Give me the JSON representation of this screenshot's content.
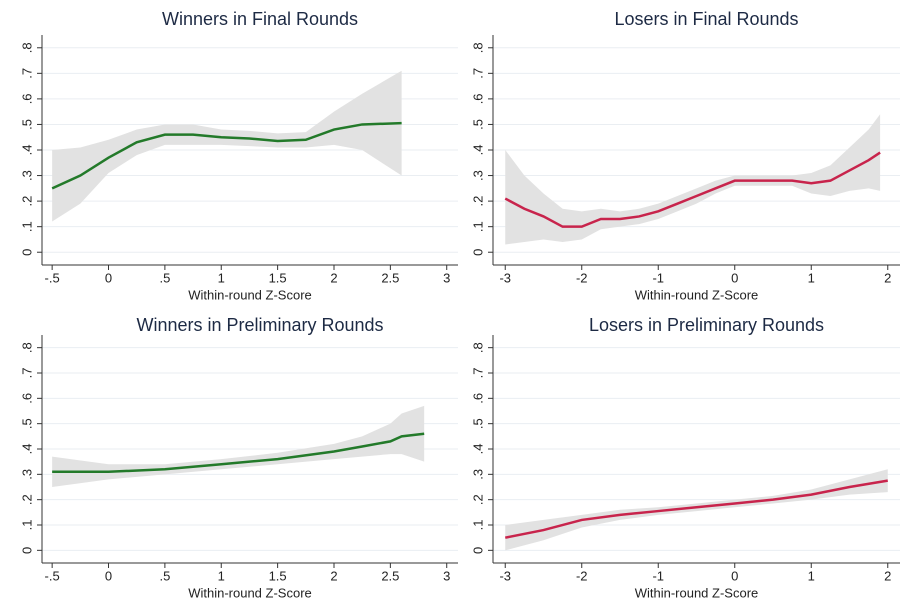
{
  "chart_data": [
    {
      "type": "line",
      "title": "Winners in Final Rounds",
      "xlabel": "Within-round Z-Score",
      "xlim": [
        -0.59,
        3.1
      ],
      "ylim": [
        -0.05,
        0.85
      ],
      "xticks": [
        {
          "value": -0.5,
          "label": "-.5"
        },
        0,
        {
          "value": 0.5,
          "label": ".5"
        },
        1,
        1.5,
        2,
        2.5,
        3
      ],
      "yticks": [
        0,
        {
          "value": 0.1,
          "label": ".1"
        },
        {
          "value": 0.2,
          "label": ".2"
        },
        {
          "value": 0.3,
          "label": ".3"
        },
        {
          "value": 0.4,
          "label": ".4"
        },
        {
          "value": 0.5,
          "label": ".5"
        },
        {
          "value": 0.6,
          "label": ".6"
        },
        {
          "value": 0.7,
          "label": ".7"
        },
        {
          "value": 0.8,
          "label": ".8"
        }
      ],
      "grid": true,
      "band_color": "#e2e2e2",
      "series": [
        {
          "color": "#237a2a",
          "x": [
            -0.5,
            -0.25,
            0,
            0.25,
            0.5,
            0.75,
            1,
            1.25,
            1.5,
            1.75,
            2,
            2.25,
            2.6
          ],
          "values": [
            0.25,
            0.3,
            0.37,
            0.43,
            0.46,
            0.46,
            0.45,
            0.445,
            0.435,
            0.44,
            0.48,
            0.5,
            0.505
          ],
          "lower": [
            0.12,
            0.19,
            0.31,
            0.38,
            0.42,
            0.42,
            0.42,
            0.415,
            0.41,
            0.41,
            0.42,
            0.4,
            0.3
          ],
          "upper": [
            0.4,
            0.41,
            0.44,
            0.48,
            0.5,
            0.5,
            0.48,
            0.475,
            0.465,
            0.47,
            0.55,
            0.62,
            0.71
          ]
        }
      ]
    },
    {
      "type": "line",
      "title": "Losers in Final Rounds",
      "xlabel": "Within-round Z-Score",
      "xlim": [
        -3.16,
        2.16
      ],
      "ylim": [
        -0.05,
        0.85
      ],
      "xticks": [
        -3,
        -2,
        -1,
        0,
        1,
        2
      ],
      "yticks": [
        0,
        {
          "value": 0.1,
          "label": ".1"
        },
        {
          "value": 0.2,
          "label": ".2"
        },
        {
          "value": 0.3,
          "label": ".3"
        },
        {
          "value": 0.4,
          "label": ".4"
        },
        {
          "value": 0.5,
          "label": ".5"
        },
        {
          "value": 0.6,
          "label": ".6"
        },
        {
          "value": 0.7,
          "label": ".7"
        },
        {
          "value": 0.8,
          "label": ".8"
        }
      ],
      "grid": true,
      "band_color": "#e2e2e2",
      "series": [
        {
          "color": "#c8244c",
          "x": [
            -3,
            -2.75,
            -2.5,
            -2.25,
            -2,
            -1.75,
            -1.5,
            -1.25,
            -1,
            -0.75,
            -0.5,
            -0.25,
            0,
            0.25,
            0.5,
            0.75,
            1,
            1.25,
            1.5,
            1.75,
            1.9
          ],
          "values": [
            0.21,
            0.17,
            0.14,
            0.1,
            0.1,
            0.13,
            0.13,
            0.14,
            0.16,
            0.19,
            0.22,
            0.25,
            0.28,
            0.28,
            0.28,
            0.28,
            0.27,
            0.28,
            0.32,
            0.36,
            0.39
          ],
          "lower": [
            0.03,
            0.04,
            0.05,
            0.04,
            0.05,
            0.09,
            0.1,
            0.11,
            0.13,
            0.16,
            0.19,
            0.23,
            0.26,
            0.26,
            0.26,
            0.26,
            0.23,
            0.22,
            0.24,
            0.25,
            0.24
          ],
          "upper": [
            0.4,
            0.3,
            0.23,
            0.17,
            0.16,
            0.17,
            0.16,
            0.17,
            0.19,
            0.22,
            0.25,
            0.28,
            0.3,
            0.3,
            0.3,
            0.3,
            0.31,
            0.34,
            0.41,
            0.48,
            0.54
          ]
        }
      ]
    },
    {
      "type": "line",
      "title": "Winners in Preliminary Rounds",
      "xlabel": "Within-round Z-Score",
      "xlim": [
        -0.59,
        3.1
      ],
      "ylim": [
        -0.05,
        0.85
      ],
      "xticks": [
        {
          "value": -0.5,
          "label": "-.5"
        },
        0,
        {
          "value": 0.5,
          "label": ".5"
        },
        1,
        1.5,
        2,
        2.5,
        3
      ],
      "yticks": [
        0,
        {
          "value": 0.1,
          "label": ".1"
        },
        {
          "value": 0.2,
          "label": ".2"
        },
        {
          "value": 0.3,
          "label": ".3"
        },
        {
          "value": 0.4,
          "label": ".4"
        },
        {
          "value": 0.5,
          "label": ".5"
        },
        {
          "value": 0.6,
          "label": ".6"
        },
        {
          "value": 0.7,
          "label": ".7"
        },
        {
          "value": 0.8,
          "label": ".8"
        }
      ],
      "grid": true,
      "band_color": "#e2e2e2",
      "series": [
        {
          "color": "#237a2a",
          "x": [
            -0.5,
            0,
            0.5,
            1,
            1.5,
            2,
            2.25,
            2.5,
            2.6,
            2.8
          ],
          "values": [
            0.31,
            0.31,
            0.32,
            0.34,
            0.36,
            0.39,
            0.41,
            0.43,
            0.45,
            0.46
          ],
          "lower": [
            0.25,
            0.28,
            0.3,
            0.32,
            0.34,
            0.36,
            0.37,
            0.38,
            0.38,
            0.35
          ],
          "upper": [
            0.37,
            0.34,
            0.34,
            0.36,
            0.385,
            0.42,
            0.45,
            0.5,
            0.54,
            0.57
          ]
        }
      ]
    },
    {
      "type": "line",
      "title": "Losers in Preliminary Rounds",
      "xlabel": "Within-round Z-Score",
      "xlim": [
        -3.16,
        2.16
      ],
      "ylim": [
        -0.05,
        0.85
      ],
      "xticks": [
        -3,
        -2,
        -1,
        0,
        1,
        2
      ],
      "yticks": [
        0,
        {
          "value": 0.1,
          "label": ".1"
        },
        {
          "value": 0.2,
          "label": ".2"
        },
        {
          "value": 0.3,
          "label": ".3"
        },
        {
          "value": 0.4,
          "label": ".4"
        },
        {
          "value": 0.5,
          "label": ".5"
        },
        {
          "value": 0.6,
          "label": ".6"
        },
        {
          "value": 0.7,
          "label": ".7"
        },
        {
          "value": 0.8,
          "label": ".8"
        }
      ],
      "grid": true,
      "band_color": "#e2e2e2",
      "series": [
        {
          "color": "#c8244c",
          "x": [
            -3,
            -2.5,
            -2,
            -1.5,
            -1,
            -0.5,
            0,
            0.5,
            1,
            1.5,
            2
          ],
          "values": [
            0.05,
            0.08,
            0.12,
            0.14,
            0.155,
            0.17,
            0.185,
            0.2,
            0.22,
            0.25,
            0.275
          ],
          "lower": [
            0,
            0.04,
            0.09,
            0.12,
            0.14,
            0.155,
            0.17,
            0.185,
            0.2,
            0.22,
            0.23
          ],
          "upper": [
            0.1,
            0.12,
            0.14,
            0.16,
            0.17,
            0.185,
            0.2,
            0.215,
            0.24,
            0.28,
            0.32
          ]
        }
      ]
    }
  ]
}
